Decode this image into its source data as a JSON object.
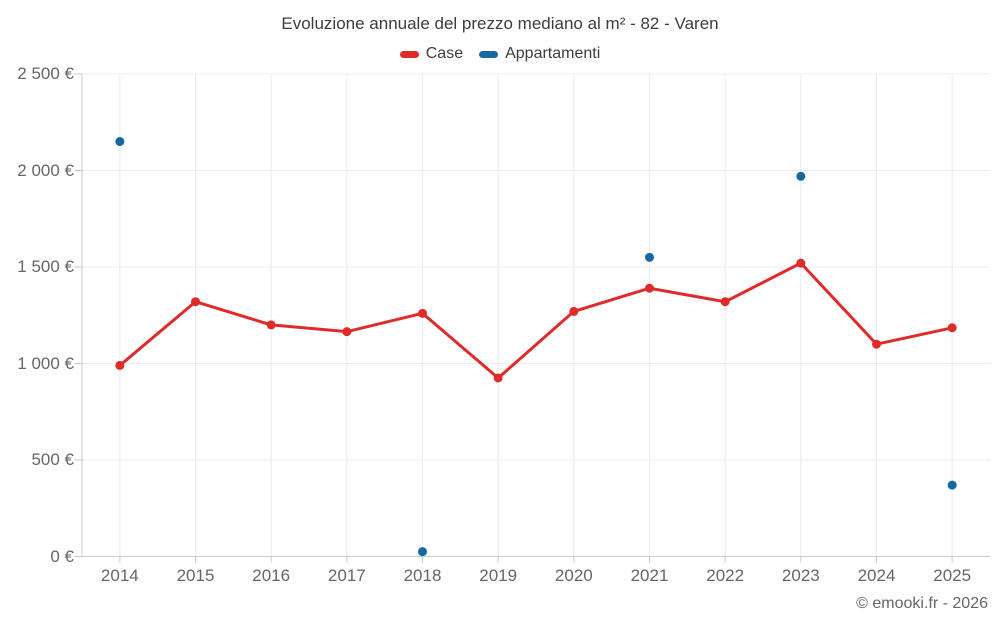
{
  "footer": {
    "credit": "© emooki.fr - 2026"
  },
  "chart_data": {
    "type": "line",
    "title": "Evoluzione annuale del prezzo mediano al m² - 82 - Varen",
    "categories": [
      "2014",
      "2015",
      "2016",
      "2017",
      "2018",
      "2019",
      "2020",
      "2021",
      "2022",
      "2023",
      "2024",
      "2025"
    ],
    "series": [
      {
        "name": "Case",
        "color": "#e02b2b",
        "style": "line+points",
        "values": [
          990,
          1320,
          1200,
          1165,
          1260,
          925,
          1270,
          1390,
          1320,
          1520,
          1100,
          1185
        ]
      },
      {
        "name": "Appartamenti",
        "color": "#1569a0",
        "style": "points",
        "values": [
          2150,
          null,
          null,
          null,
          25,
          null,
          null,
          1550,
          null,
          1970,
          null,
          370
        ]
      }
    ],
    "ylabel": "",
    "xlabel": "",
    "ylim": [
      0,
      2500
    ],
    "y_ticks": [
      0,
      500,
      1000,
      1500,
      2000,
      2500
    ],
    "y_tick_labels": [
      "0 €",
      "500 €",
      "1 000 €",
      "1 500 €",
      "2 000 €",
      "2 500 €"
    ],
    "grid": true,
    "legend_position": "top"
  },
  "colors": {
    "gridline": "#ececec",
    "axis": "#c9c9c9",
    "tick_label": "#666666",
    "title_text": "#3d3d3d"
  }
}
